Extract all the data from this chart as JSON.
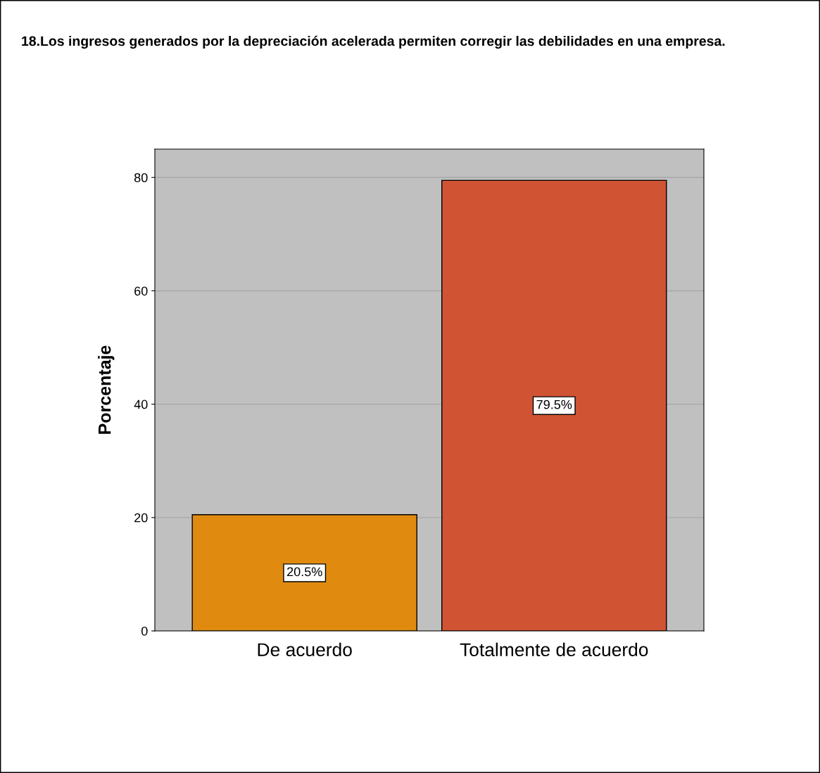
{
  "chart_data": {
    "type": "bar",
    "title": "18.Los ingresos generados por la depreciación acelerada permiten corregir las debilidades en una empresa.",
    "ylabel": "Porcentaje",
    "categories": [
      "De acuerdo",
      "Totalmente de acuerdo"
    ],
    "values": [
      20.5,
      79.5
    ],
    "colors": [
      "#e08b10",
      "#d05333"
    ],
    "value_labels": [
      "20.5%",
      "79.5%"
    ],
    "ylim": [
      0,
      85
    ],
    "yticks": [
      0,
      20,
      40,
      60,
      80
    ],
    "grid": "y"
  }
}
